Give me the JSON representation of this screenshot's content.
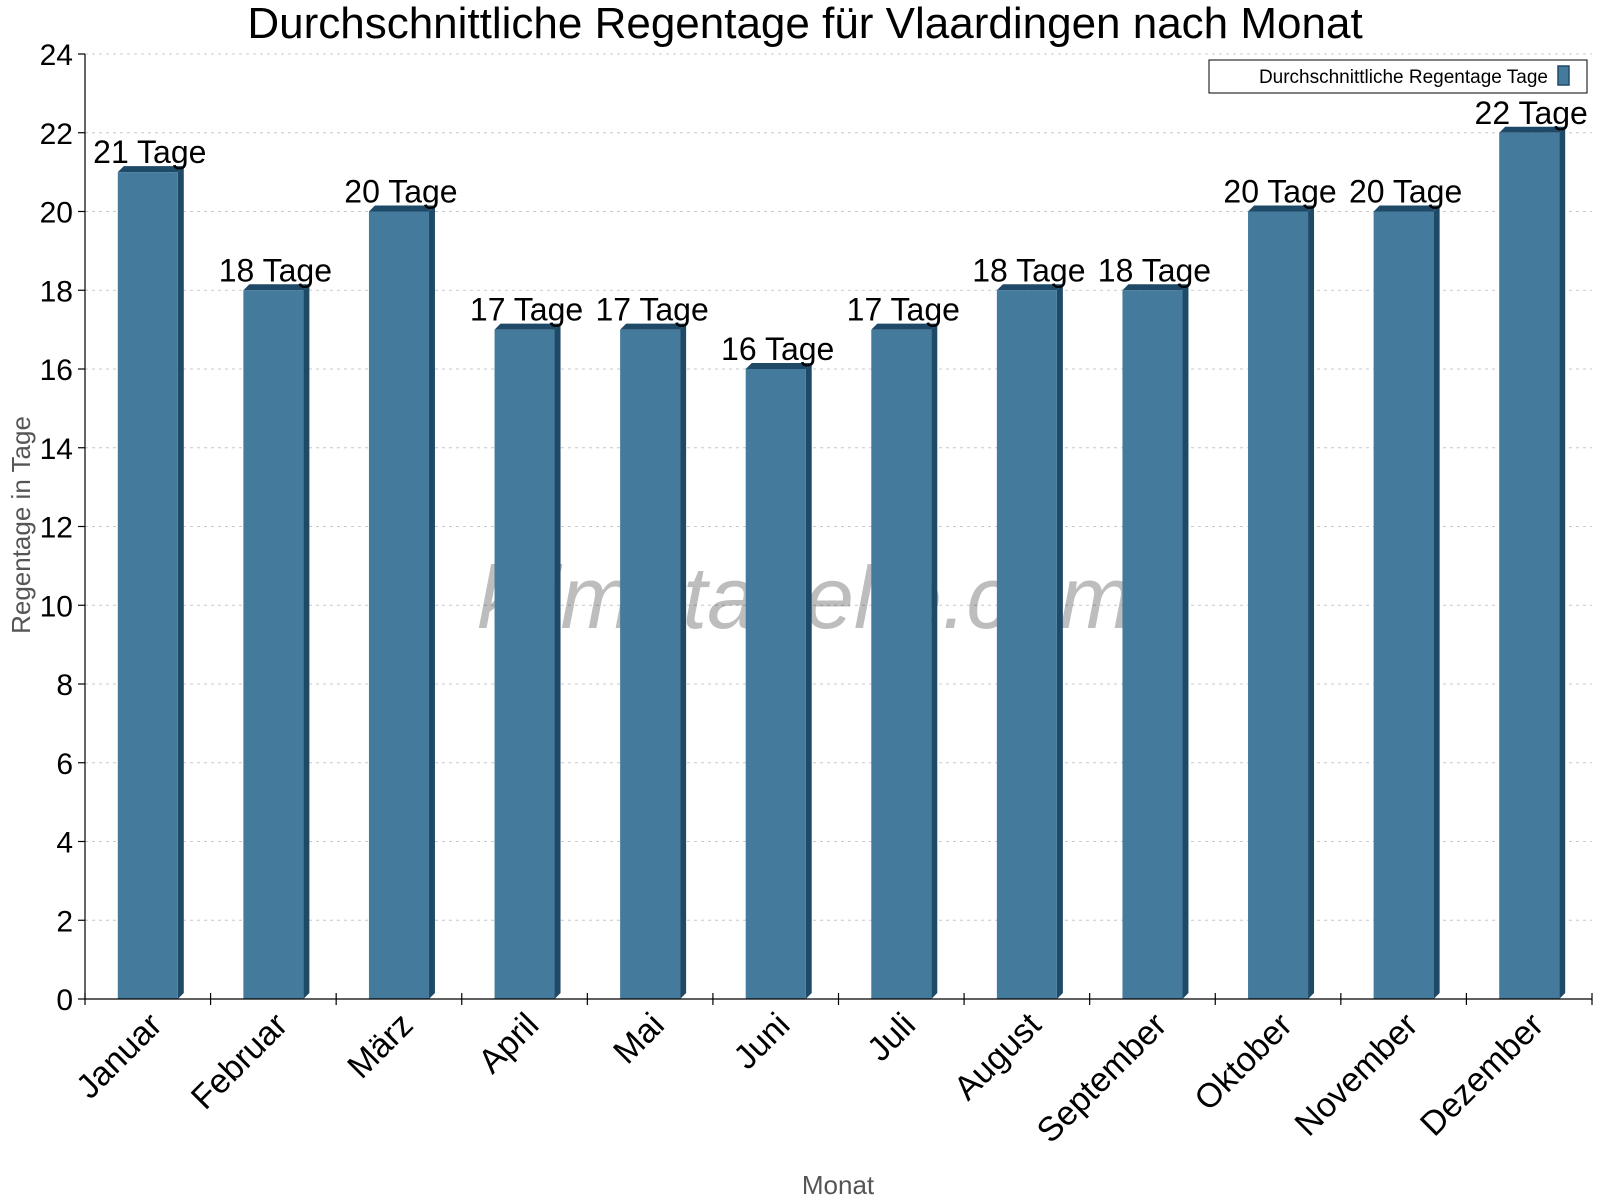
{
  "chart_data": {
    "type": "bar",
    "title": "Durchschnittliche Regentage für Vlaardingen nach Monat",
    "xlabel": "Monat",
    "ylabel": "Regentage in Tage",
    "categories": [
      "Januar",
      "Februar",
      "März",
      "April",
      "Mai",
      "Juni",
      "Juli",
      "August",
      "September",
      "Oktober",
      "November",
      "Dezember"
    ],
    "series": [
      {
        "name": "Durchschnittliche Regentage Tage",
        "values": [
          21,
          18,
          20,
          17,
          17,
          16,
          17,
          18,
          18,
          20,
          20,
          22
        ],
        "data_labels": [
          "21 Tage",
          "18 Tage",
          "20 Tage",
          "17 Tage",
          "17 Tage",
          "16 Tage",
          "17 Tage",
          "18 Tage",
          "18 Tage",
          "20 Tage",
          "20 Tage",
          "22 Tage"
        ]
      }
    ],
    "ylim": [
      0,
      24
    ],
    "yticks": [
      0,
      2,
      4,
      6,
      8,
      10,
      12,
      14,
      16,
      18,
      20,
      22,
      24
    ],
    "grid": true,
    "legend_position": "top-right",
    "bar_color": "#447a9c",
    "bar_side_color": "#1e4a68",
    "watermark": "klimatabelle.com"
  }
}
